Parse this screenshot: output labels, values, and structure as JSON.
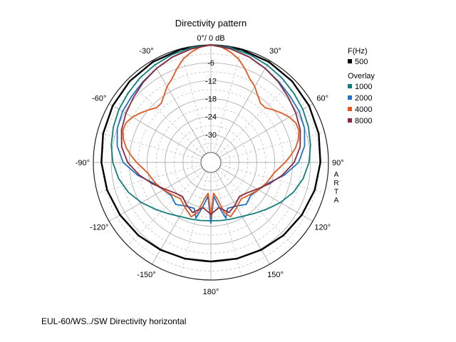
{
  "chart_data": {
    "type": "polar-line",
    "title": "Directivity pattern",
    "zero_label": "0°/ 0 dB",
    "radial_labels": [
      "-6",
      "-12",
      "-18",
      "-24",
      "-30"
    ],
    "radial_range_db": [
      -36,
      0
    ],
    "angle_labels": [
      {
        "deg": -30,
        "text": "-30°"
      },
      {
        "deg": 30,
        "text": "30°"
      },
      {
        "deg": -60,
        "text": "-60°"
      },
      {
        "deg": 60,
        "text": "60°"
      },
      {
        "deg": -90,
        "text": "-90°"
      },
      {
        "deg": 90,
        "text": "90°"
      },
      {
        "deg": -120,
        "text": "-120°"
      },
      {
        "deg": 120,
        "text": "120°"
      },
      {
        "deg": -150,
        "text": "-150°"
      },
      {
        "deg": 150,
        "text": "150°"
      },
      {
        "deg": 180,
        "text": "180°"
      }
    ],
    "watermark": "ARTA",
    "grid": true,
    "legend": {
      "freq_header": "F(Hz)",
      "overlay_header": "Overlay",
      "placement": "right"
    },
    "series": [
      {
        "name": "500",
        "color": "#000000",
        "group": "main",
        "points": [
          [
            0,
            0
          ],
          [
            15,
            -0.2
          ],
          [
            30,
            -0.5
          ],
          [
            45,
            -0.9
          ],
          [
            60,
            -1.4
          ],
          [
            75,
            -2.0
          ],
          [
            90,
            -2.7
          ],
          [
            105,
            -3.4
          ],
          [
            120,
            -4.2
          ],
          [
            135,
            -4.9
          ],
          [
            150,
            -5.6
          ],
          [
            165,
            -6.0
          ],
          [
            180,
            -6.2
          ]
        ]
      },
      {
        "name": "1000",
        "color": "#0f7d7d",
        "group": "overlay",
        "points": [
          [
            0,
            0
          ],
          [
            10,
            -0.4
          ],
          [
            20,
            -1.0
          ],
          [
            30,
            -1.7
          ],
          [
            40,
            -2.4
          ],
          [
            50,
            -3.2
          ],
          [
            60,
            -3.8
          ],
          [
            70,
            -4.6
          ],
          [
            80,
            -5.5
          ],
          [
            90,
            -6.5
          ],
          [
            100,
            -8.0
          ],
          [
            110,
            -10.0
          ],
          [
            120,
            -12.5
          ],
          [
            130,
            -15.0
          ],
          [
            140,
            -17.0
          ],
          [
            150,
            -18.5
          ],
          [
            160,
            -19.2
          ],
          [
            170,
            -19.6
          ],
          [
            180,
            -19.8
          ]
        ]
      },
      {
        "name": "2000",
        "color": "#1f74c8",
        "group": "overlay",
        "points": [
          [
            0,
            0
          ],
          [
            10,
            -0.8
          ],
          [
            20,
            -1.8
          ],
          [
            30,
            -3.0
          ],
          [
            40,
            -4.0
          ],
          [
            50,
            -4.8
          ],
          [
            60,
            -5.2
          ],
          [
            70,
            -6.0
          ],
          [
            80,
            -7.5
          ],
          [
            90,
            -10.0
          ],
          [
            100,
            -14.5
          ],
          [
            110,
            -19.0
          ],
          [
            120,
            -21.0
          ],
          [
            130,
            -22.0
          ],
          [
            140,
            -21.0
          ],
          [
            150,
            -22.5
          ],
          [
            160,
            -23.0
          ],
          [
            165,
            -20.0
          ],
          [
            170,
            -24.5
          ],
          [
            175,
            -28.0
          ],
          [
            180,
            -19.0
          ]
        ]
      },
      {
        "name": "4000",
        "color": "#e4571f",
        "group": "overlay",
        "points": [
          [
            0,
            0
          ],
          [
            5,
            -0.5
          ],
          [
            10,
            -1.8
          ],
          [
            15,
            -3.5
          ],
          [
            20,
            -6.0
          ],
          [
            25,
            -8.5
          ],
          [
            30,
            -10.0
          ],
          [
            35,
            -12.0
          ],
          [
            40,
            -13.5
          ],
          [
            45,
            -13.5
          ],
          [
            50,
            -12.0
          ],
          [
            55,
            -10.5
          ],
          [
            60,
            -9.0
          ],
          [
            65,
            -8.0
          ],
          [
            70,
            -8.0
          ],
          [
            75,
            -9.0
          ],
          [
            80,
            -10.5
          ],
          [
            85,
            -12.5
          ],
          [
            90,
            -14.5
          ],
          [
            95,
            -16.5
          ],
          [
            100,
            -18.0
          ],
          [
            110,
            -19.5
          ],
          [
            120,
            -21.0
          ],
          [
            130,
            -22.5
          ],
          [
            140,
            -23.5
          ],
          [
            150,
            -22.0
          ],
          [
            160,
            -20.0
          ],
          [
            165,
            -22.0
          ],
          [
            170,
            -27.0
          ],
          [
            175,
            -29.0
          ],
          [
            180,
            -21.0
          ]
        ]
      },
      {
        "name": "8000",
        "color": "#8b2a3c",
        "group": "overlay",
        "points": [
          [
            0,
            0
          ],
          [
            10,
            -0.8
          ],
          [
            20,
            -1.8
          ],
          [
            30,
            -3.0
          ],
          [
            40,
            -4.2
          ],
          [
            50,
            -5.5
          ],
          [
            60,
            -6.5
          ],
          [
            70,
            -7.5
          ],
          [
            80,
            -9.0
          ],
          [
            90,
            -11.5
          ],
          [
            100,
            -15.0
          ],
          [
            110,
            -18.5
          ],
          [
            120,
            -21.5
          ],
          [
            130,
            -23.5
          ],
          [
            140,
            -24.5
          ],
          [
            150,
            -23.0
          ],
          [
            160,
            -21.5
          ],
          [
            170,
            -24.0
          ],
          [
            180,
            -22.0
          ]
        ]
      }
    ]
  },
  "caption": "EUL-60/WS../SW Directivity horizontal"
}
